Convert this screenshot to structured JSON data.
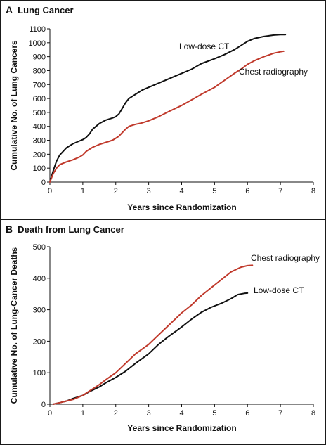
{
  "panels": [
    {
      "letter": "A",
      "title": "Lung Cancer"
    },
    {
      "letter": "B",
      "title": "Death from Lung Cancer"
    }
  ],
  "chart_data": [
    {
      "type": "line",
      "title": "Lung Cancer",
      "xlabel": "Years since Randomization",
      "ylabel": "Cumulative No. of Lung Cancers",
      "xlim": [
        0,
        8
      ],
      "ylim": [
        0,
        1100
      ],
      "xticks": [
        0,
        1,
        2,
        3,
        4,
        5,
        6,
        7,
        8
      ],
      "yticks": [
        0,
        100,
        200,
        300,
        400,
        500,
        600,
        700,
        800,
        900,
        1000,
        1100
      ],
      "grid": false,
      "series": [
        {
          "name": "Low-dose CT",
          "color": "#111111",
          "x": [
            0,
            0.1,
            0.2,
            0.3,
            0.5,
            0.7,
            0.9,
            1.0,
            1.1,
            1.2,
            1.3,
            1.5,
            1.7,
            1.9,
            2.0,
            2.1,
            2.2,
            2.3,
            2.4,
            2.6,
            2.8,
            3.0,
            3.3,
            3.6,
            4.0,
            4.3,
            4.6,
            5.0,
            5.3,
            5.6,
            5.8,
            6.0,
            6.2,
            6.5,
            6.8,
            7.0,
            7.15
          ],
          "y": [
            0,
            80,
            150,
            195,
            245,
            275,
            295,
            305,
            320,
            345,
            380,
            420,
            445,
            460,
            470,
            490,
            530,
            570,
            600,
            630,
            660,
            680,
            710,
            740,
            780,
            810,
            850,
            885,
            915,
            950,
            980,
            1010,
            1030,
            1045,
            1055,
            1058,
            1058
          ]
        },
        {
          "name": "Chest radiography",
          "color": "#c0392b",
          "x": [
            0,
            0.1,
            0.2,
            0.3,
            0.5,
            0.7,
            0.9,
            1.0,
            1.1,
            1.3,
            1.5,
            1.7,
            1.9,
            2.0,
            2.1,
            2.2,
            2.3,
            2.4,
            2.6,
            2.8,
            3.0,
            3.3,
            3.6,
            4.0,
            4.3,
            4.6,
            5.0,
            5.3,
            5.6,
            5.8,
            6.0,
            6.2,
            6.5,
            6.8,
            7.0,
            7.1
          ],
          "y": [
            0,
            60,
            100,
            125,
            145,
            160,
            180,
            195,
            220,
            250,
            270,
            285,
            300,
            315,
            330,
            355,
            380,
            400,
            415,
            425,
            440,
            470,
            505,
            550,
            590,
            630,
            680,
            730,
            780,
            810,
            845,
            870,
            900,
            925,
            935,
            939
          ]
        }
      ],
      "annotations": [
        "Low-dose CT",
        "Chest radiography"
      ]
    },
    {
      "type": "line",
      "title": "Death from Lung Cancer",
      "xlabel": "Years since Randomization",
      "ylabel": "Cumulative No. of Lung-Cancer Deaths",
      "xlim": [
        0,
        8
      ],
      "ylim": [
        0,
        500
      ],
      "xticks": [
        0,
        1,
        2,
        3,
        4,
        5,
        6,
        7,
        8
      ],
      "yticks": [
        0,
        100,
        200,
        300,
        400,
        500
      ],
      "grid": false,
      "series": [
        {
          "name": "Low-dose CT",
          "color": "#111111",
          "x": [
            0.1,
            0.3,
            0.5,
            0.7,
            1.0,
            1.2,
            1.5,
            1.7,
            2.0,
            2.3,
            2.6,
            3.0,
            3.3,
            3.6,
            4.0,
            4.3,
            4.6,
            4.9,
            5.2,
            5.5,
            5.7,
            5.9,
            6.0
          ],
          "y": [
            0,
            5,
            10,
            18,
            28,
            40,
            55,
            68,
            85,
            105,
            130,
            160,
            190,
            215,
            245,
            270,
            292,
            308,
            320,
            335,
            348,
            352,
            353
          ]
        },
        {
          "name": "Chest radiography",
          "color": "#c0392b",
          "x": [
            0.1,
            0.3,
            0.5,
            0.7,
            1.0,
            1.2,
            1.5,
            1.7,
            2.0,
            2.3,
            2.6,
            3.0,
            3.3,
            3.6,
            4.0,
            4.3,
            4.6,
            4.9,
            5.2,
            5.5,
            5.8,
            6.0,
            6.15
          ],
          "y": [
            0,
            5,
            10,
            15,
            28,
            42,
            62,
            78,
            100,
            130,
            160,
            190,
            220,
            250,
            290,
            315,
            345,
            370,
            395,
            420,
            435,
            440,
            441
          ]
        }
      ],
      "annotations": [
        "Chest radiography",
        "Low-dose CT"
      ]
    }
  ]
}
